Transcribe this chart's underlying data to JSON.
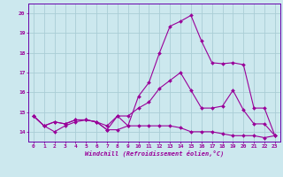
{
  "xlabel": "Windchill (Refroidissement éolien,°C)",
  "background_color": "#cce8ee",
  "grid_color": "#aacdd6",
  "line_color": "#990099",
  "spine_color": "#6600aa",
  "xlim": [
    -0.5,
    23.5
  ],
  "ylim": [
    13.5,
    20.5
  ],
  "yticks": [
    14,
    15,
    16,
    17,
    18,
    19,
    20
  ],
  "xticks": [
    0,
    1,
    2,
    3,
    4,
    5,
    6,
    7,
    8,
    9,
    10,
    11,
    12,
    13,
    14,
    15,
    16,
    17,
    18,
    19,
    20,
    21,
    22,
    23
  ],
  "line1_x": [
    0,
    1,
    2,
    3,
    4,
    5,
    6,
    7,
    8,
    9,
    10,
    11,
    12,
    13,
    14,
    15,
    16,
    17,
    18,
    19,
    20,
    21,
    22,
    23
  ],
  "line1_y": [
    14.8,
    14.3,
    14.0,
    14.3,
    14.5,
    14.6,
    14.5,
    14.1,
    14.8,
    14.3,
    14.3,
    14.3,
    14.3,
    14.3,
    14.2,
    14.0,
    14.0,
    14.0,
    13.9,
    13.8,
    13.8,
    13.8,
    13.7,
    13.8
  ],
  "line2_x": [
    0,
    1,
    2,
    3,
    4,
    5,
    6,
    7,
    8,
    9,
    10,
    11,
    12,
    13,
    14,
    15,
    16,
    17,
    18,
    19,
    20,
    21,
    22,
    23
  ],
  "line2_y": [
    14.8,
    14.3,
    14.5,
    14.4,
    14.6,
    14.6,
    14.5,
    14.3,
    14.8,
    14.8,
    15.2,
    15.5,
    16.2,
    16.6,
    17.0,
    16.1,
    15.2,
    15.2,
    15.3,
    16.1,
    15.1,
    14.4,
    14.4,
    13.8
  ],
  "line3_x": [
    0,
    1,
    2,
    3,
    4,
    5,
    6,
    7,
    8,
    9,
    10,
    11,
    12,
    13,
    14,
    15,
    16,
    17,
    18,
    19,
    20,
    21,
    22,
    23
  ],
  "line3_y": [
    14.8,
    14.3,
    14.5,
    14.4,
    14.6,
    14.6,
    14.5,
    14.1,
    14.1,
    14.3,
    15.8,
    16.5,
    18.0,
    19.35,
    19.6,
    19.9,
    18.6,
    17.5,
    17.45,
    17.5,
    17.4,
    15.2,
    15.2,
    13.8
  ]
}
